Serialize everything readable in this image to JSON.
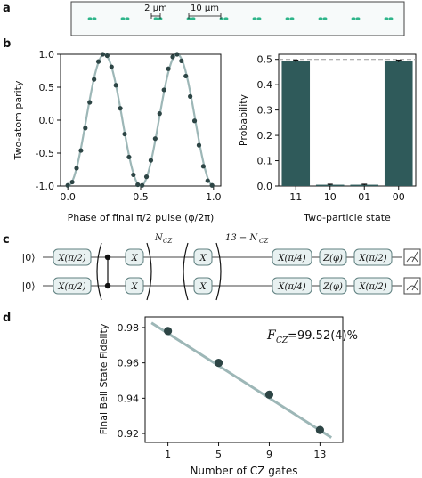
{
  "panels": {
    "a": "a",
    "b": "b",
    "c": "c",
    "d": "d"
  },
  "colors": {
    "atom": "#2fb58a",
    "bar": "#2f5a5a",
    "dot": "#2d4545",
    "fit": "#9db7b7",
    "gate_fill": "#e8f1f1",
    "gate_stroke": "#5f8080"
  },
  "panel_a": {
    "scale_small": "2 μm",
    "scale_large": "10 μm",
    "atom_sites": 10
  },
  "chart_data": [
    {
      "type": "scatter",
      "xlabel": "Phase of final π/2 pulse (φ/2π)",
      "ylabel": "Two-atom parity",
      "xlim": [
        -0.05,
        1.05
      ],
      "ylim": [
        -1.0,
        1.0
      ],
      "xticks": [
        "0.0",
        "0.5",
        "1.0"
      ],
      "yticks": [
        "1.0",
        "0.5",
        "0.0",
        "-0.5",
        "-1.0"
      ],
      "fit": "cos(4π(x - 0.25))",
      "x": [
        0.0,
        0.03,
        0.06,
        0.09,
        0.12,
        0.15,
        0.18,
        0.21,
        0.24,
        0.27,
        0.3,
        0.33,
        0.36,
        0.39,
        0.42,
        0.45,
        0.48,
        0.51,
        0.54,
        0.57,
        0.6,
        0.63,
        0.66,
        0.69,
        0.72,
        0.75,
        0.78,
        0.81,
        0.84,
        0.87,
        0.9,
        0.93,
        0.96,
        0.99
      ],
      "y": [
        -0.99,
        -0.94,
        -0.73,
        -0.46,
        -0.12,
        0.27,
        0.62,
        0.89,
        1.0,
        0.98,
        0.81,
        0.53,
        0.18,
        -0.21,
        -0.56,
        -0.83,
        -0.98,
        -0.99,
        -0.86,
        -0.61,
        -0.28,
        0.1,
        0.46,
        0.78,
        0.96,
        1.0,
        0.9,
        0.67,
        0.36,
        -0.01,
        -0.38,
        -0.7,
        -0.92,
        -0.99
      ]
    },
    {
      "type": "bar",
      "xlabel": "Two-particle state",
      "ylabel": "Probability",
      "categories": [
        "11",
        "10",
        "01",
        "00"
      ],
      "values": [
        0.493,
        0.005,
        0.005,
        0.493
      ],
      "errors": [
        0.004,
        0.002,
        0.002,
        0.004
      ],
      "ylim": [
        0.0,
        0.52
      ],
      "yticks": [
        "0.5",
        "0.4",
        "0.3",
        "0.2",
        "0.1",
        "0.0"
      ],
      "reference_line": 0.5
    },
    {
      "type": "line",
      "xlabel": "Number of CZ gates",
      "ylabel": "Final Bell State Fidelity",
      "annotation": "99.52(4)%",
      "annotation_symbol": "F",
      "annotation_sub": "CZ",
      "x": [
        1,
        5,
        9,
        13
      ],
      "y": [
        0.978,
        0.96,
        0.942,
        0.922
      ],
      "errors": [
        0.002,
        0.002,
        0.002,
        0.002
      ],
      "xlim": [
        -0.8,
        14.8
      ],
      "ylim": [
        0.915,
        0.986
      ],
      "xticks": [
        "1",
        "5",
        "9",
        "13"
      ],
      "yticks": [
        "0.98",
        "0.96",
        "0.94",
        "0.92"
      ],
      "fit_line": {
        "x": [
          -0.3,
          13.9
        ],
        "y": [
          0.9826,
          0.9177
        ]
      }
    }
  ],
  "circuit": {
    "ket": "|0⟩",
    "g1": "X(π/2)",
    "gx": "X",
    "repeat_label_1": "N",
    "repeat_label_1_sub": "CZ",
    "repeat_label_2": "13 − N",
    "repeat_label_2_sub": "CZ",
    "g2": "X(π/4)",
    "g3": "Z(φ)",
    "g4": "X(π/2)"
  }
}
